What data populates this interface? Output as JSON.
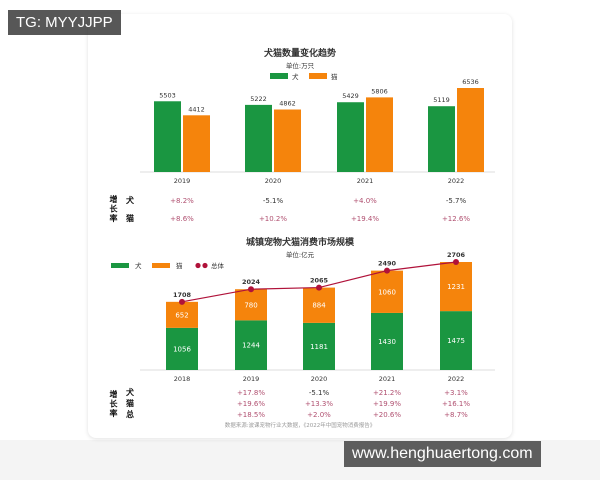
{
  "watermarks": {
    "top_left": "TG: MYYJJPP",
    "bottom_right": "www.henghuaertong.com"
  },
  "colors": {
    "dog": "#1a9641",
    "cat": "#f5840c",
    "total": "#b0123a",
    "growth_pos": "#b05070",
    "growth_neg": "#333333"
  },
  "chart_data": [
    {
      "type": "bar",
      "title": "犬猫数量变化趋势",
      "subtitle": "单位:万只",
      "legend": [
        "犬",
        "猫"
      ],
      "legend_position": "top-center",
      "categories": [
        "2019",
        "2020",
        "2021",
        "2022"
      ],
      "series": [
        {
          "name": "犬",
          "values": [
            5503,
            5222,
            5429,
            5119
          ]
        },
        {
          "name": "猫",
          "values": [
            4412,
            4862,
            5806,
            6536
          ]
        }
      ],
      "growth_label": "增长率",
      "growth_rows": [
        {
          "name": "犬",
          "values": [
            "+8.2%",
            "-5.1%",
            "+4.0%",
            "-5.7%"
          ]
        },
        {
          "name": "猫",
          "values": [
            "+8.6%",
            "+10.2%",
            "+19.4%",
            "+12.6%"
          ]
        }
      ],
      "ylim": [
        0,
        6536
      ]
    },
    {
      "type": "bar",
      "stacked": true,
      "title": "城镇宠物犬猫消费市场规模",
      "subtitle": "单位:亿元",
      "legend": [
        "犬",
        "猫",
        "总体"
      ],
      "legend_position": "top-left",
      "categories": [
        "2018",
        "2019",
        "2020",
        "2021",
        "2022"
      ],
      "series": [
        {
          "name": "犬",
          "values": [
            1056,
            1244,
            1181,
            1430,
            1475
          ]
        },
        {
          "name": "猫",
          "values": [
            652,
            780,
            884,
            1060,
            1231
          ]
        },
        {
          "name": "总体",
          "type": "line",
          "values": [
            1708,
            2024,
            2065,
            2490,
            2706
          ]
        }
      ],
      "growth_label": "增长率",
      "growth_rows": [
        {
          "name": "犬",
          "values": [
            "",
            "+17.8%",
            "-5.1%",
            "+21.2%",
            "+3.1%"
          ]
        },
        {
          "name": "猫",
          "values": [
            "",
            "+19.6%",
            "+13.3%",
            "+19.9%",
            "+16.1%"
          ]
        },
        {
          "name": "总",
          "values": [
            "",
            "+18.5%",
            "+2.0%",
            "+20.6%",
            "+8.7%"
          ]
        }
      ],
      "source": "数据来源:波课宠物行业大数据，《2022年中国宠物消费报告》",
      "ylim": [
        0,
        2706
      ]
    }
  ]
}
